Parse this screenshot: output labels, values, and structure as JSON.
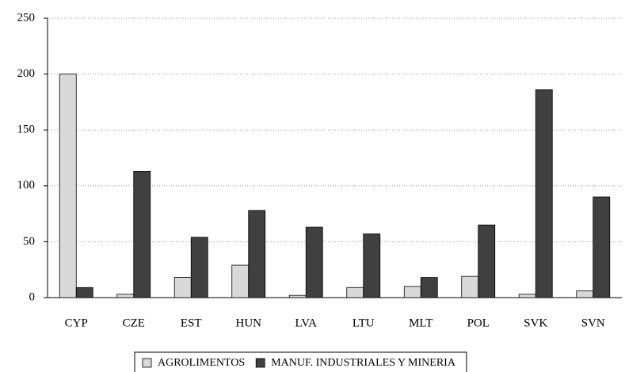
{
  "chart_data": {
    "type": "bar",
    "categories": [
      "CYP",
      "CZE",
      "EST",
      "HUN",
      "LVA",
      "LTU",
      "MLT",
      "POL",
      "SVK",
      "SVN"
    ],
    "series": [
      {
        "name": "AGROLIMENTOS",
        "color": "#d9d9d9",
        "values": [
          200,
          3,
          18,
          29,
          2,
          9,
          10,
          19,
          3,
          6
        ]
      },
      {
        "name": "MANUF. INDUSTRIALES Y MINERIA",
        "color": "#404040",
        "values": [
          9,
          113,
          54,
          78,
          63,
          57,
          18,
          65,
          186,
          90
        ]
      }
    ],
    "ylim": [
      0,
      250
    ],
    "yticks": [
      0,
      50,
      100,
      150,
      200,
      250
    ],
    "grid": true,
    "legend": "bottom"
  }
}
